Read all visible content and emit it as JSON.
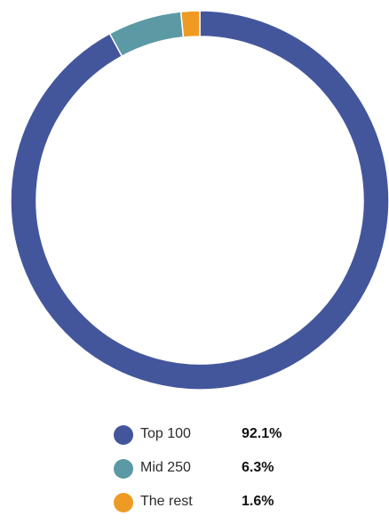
{
  "chart_data": {
    "type": "pie",
    "variant": "donut",
    "title": "",
    "legend_position": "bottom",
    "slices": [
      {
        "label": "Top 100",
        "value": 92.1,
        "display": "92.1%",
        "color": "#44569b"
      },
      {
        "label": "Mid 250",
        "value": 6.3,
        "display": "6.3%",
        "color": "#5b9aa4"
      },
      {
        "label": "The rest",
        "value": 1.6,
        "display": "1.6%",
        "color": "#ee9a24"
      }
    ]
  }
}
